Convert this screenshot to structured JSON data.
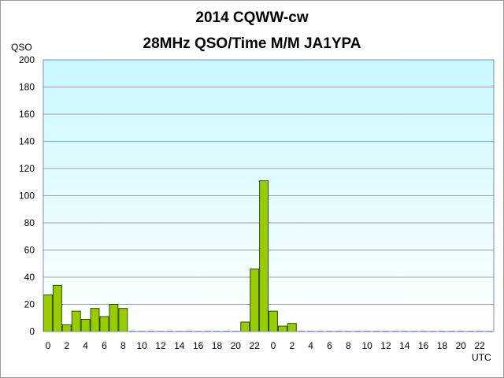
{
  "chart_data": {
    "type": "bar",
    "title": "2014  CQWW-cw",
    "subtitle": "28MHz QSO/Time  M/M JA1YPA",
    "ylabel": "QSO",
    "xlabel": "UTC",
    "ylim": [
      0,
      200
    ],
    "yticks": [
      0,
      20,
      40,
      60,
      80,
      100,
      120,
      140,
      160,
      180,
      200
    ],
    "grid": true,
    "categories": [
      "0",
      "1",
      "2",
      "3",
      "4",
      "5",
      "6",
      "7",
      "8",
      "9",
      "10",
      "11",
      "12",
      "13",
      "14",
      "15",
      "16",
      "17",
      "18",
      "19",
      "20",
      "21",
      "22",
      "23",
      "0",
      "1",
      "2",
      "3",
      "4",
      "5",
      "6",
      "7",
      "8",
      "9",
      "10",
      "11",
      "12",
      "13",
      "14",
      "15",
      "16",
      "17",
      "18",
      "19",
      "20",
      "21",
      "22",
      "23"
    ],
    "xtick_labels": [
      "0",
      "",
      "2",
      "",
      "4",
      "",
      "6",
      "",
      "8",
      "",
      "10",
      "",
      "12",
      "",
      "14",
      "",
      "16",
      "",
      "18",
      "",
      "20",
      "",
      "22",
      "",
      "0",
      "",
      "2",
      "",
      "4",
      "",
      "6",
      "",
      "8",
      "",
      "10",
      "",
      "12",
      "",
      "14",
      "",
      "16",
      "",
      "18",
      "",
      "20",
      "",
      "22",
      ""
    ],
    "values": [
      27,
      34,
      5,
      15,
      9,
      17,
      11,
      20,
      17,
      0,
      0,
      0,
      0,
      0,
      0,
      0,
      0,
      0,
      0,
      0,
      0,
      7,
      46,
      111,
      15,
      4,
      6,
      0,
      0,
      0,
      0,
      0,
      0,
      0,
      0,
      0,
      0,
      0,
      0,
      0,
      0,
      0,
      0,
      0,
      0,
      0,
      0,
      0
    ],
    "colors": {
      "bar_fill": "#99cc00",
      "bar_stroke": "#2f4f00",
      "plot_bg_top": "#c8f8ff",
      "plot_bg_bottom": "#ffffff",
      "grid": "#a0a0a0",
      "plot_border": "#7f8bb6"
    }
  }
}
